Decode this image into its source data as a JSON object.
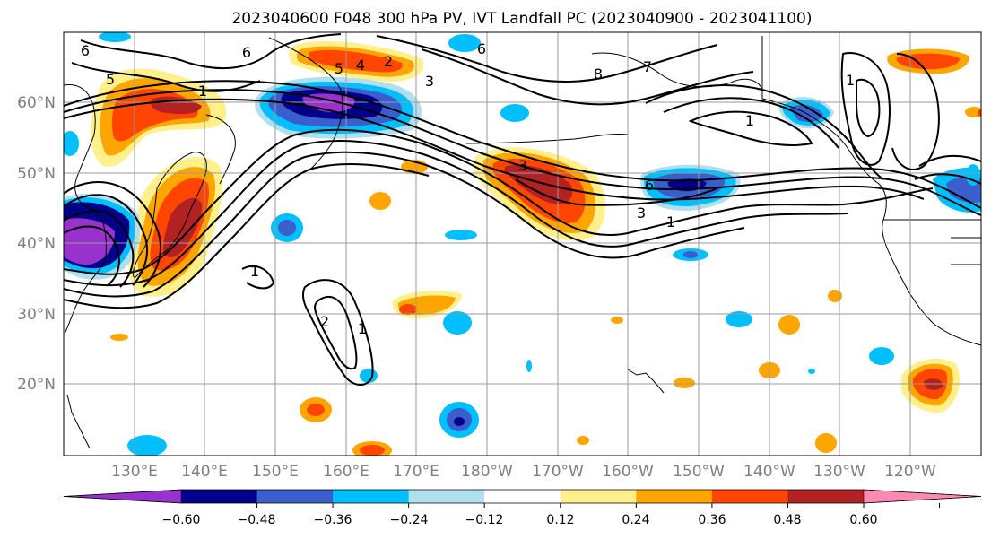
{
  "title": "2023040600 F048 300 hPa PV, IVT Landfall PC (2023040900 - 2023041100)",
  "map": {
    "lat_labels": [
      "60°N",
      "50°N",
      "40°N",
      "30°N",
      "20°N"
    ],
    "lon_labels": [
      "130°E",
      "140°E",
      "150°E",
      "160°E",
      "170°E",
      "180°W",
      "170°W",
      "160°W",
      "150°W",
      "140°W",
      "130°W",
      "120°W"
    ],
    "pv_contour_labels": [
      "6",
      "5",
      "5",
      "4",
      "3",
      "2",
      "1",
      "7",
      "8",
      "1",
      "6",
      "3",
      "1",
      "1",
      "2",
      "1",
      "6",
      "1",
      "3",
      "6"
    ]
  },
  "colorbar": {
    "colors": [
      "#9932cc",
      "#00008b",
      "#3a5fcd",
      "#00bfff",
      "#b2dfee",
      "#ffffff",
      "#fff08c",
      "#ffa500",
      "#ff4500",
      "#b22222",
      "#ff89b4"
    ],
    "tick_labels": [
      "−0.60",
      "−0.48",
      "−0.36",
      "−0.24",
      "−0.12",
      "0.12",
      "0.24",
      "0.36",
      "0.48",
      "0.60"
    ]
  }
}
